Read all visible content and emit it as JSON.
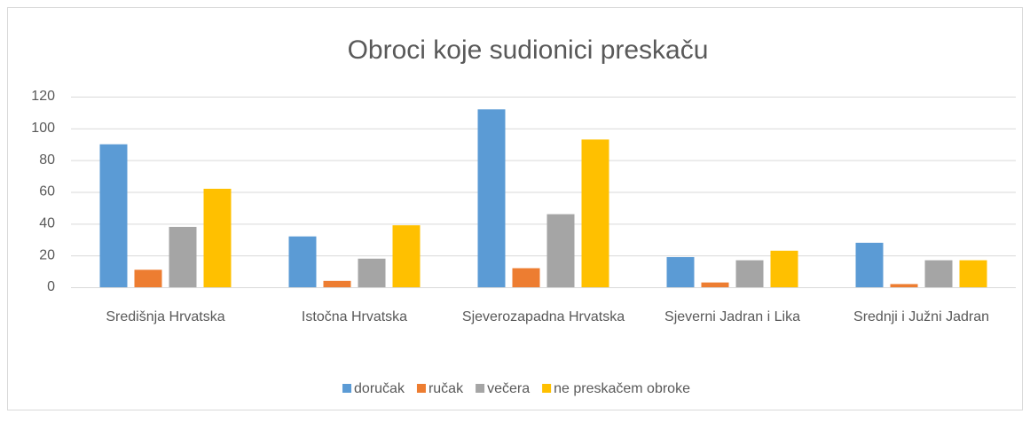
{
  "chart_data": {
    "type": "bar",
    "title": "Obroci koje sudionici preskaču",
    "categories": [
      "Središnja Hrvatska",
      "Istočna Hrvatska",
      "Sjeverozapadna Hrvatska",
      "Sjeverni Jadran i Lika",
      "Srednji i Južni Jadran"
    ],
    "series": [
      {
        "name": "doručak",
        "color": "#5b9bd5",
        "values": [
          90,
          32,
          112,
          19,
          28
        ]
      },
      {
        "name": "ručak",
        "color": "#ed7d31",
        "values": [
          11,
          4,
          12,
          3,
          2
        ]
      },
      {
        "name": "večera",
        "color": "#a5a5a5",
        "values": [
          38,
          18,
          46,
          17,
          17
        ]
      },
      {
        "name": "ne preskačem obroke",
        "color": "#ffc000",
        "values": [
          62,
          39,
          93,
          23,
          17
        ]
      }
    ],
    "ylim": [
      0,
      120
    ],
    "yticks": [
      0,
      20,
      40,
      60,
      80,
      100,
      120
    ],
    "grid": true,
    "legend": "bottom"
  }
}
